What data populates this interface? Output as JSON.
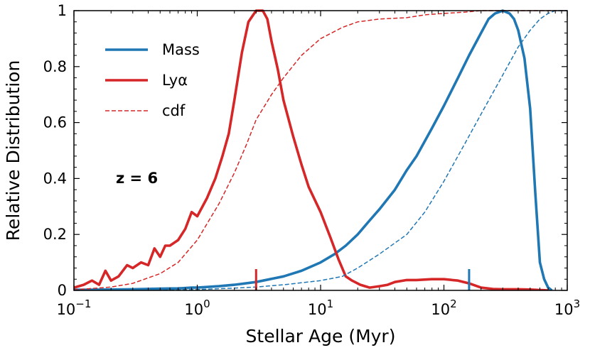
{
  "chart_data": {
    "type": "line",
    "xlabel": "Stellar Age (Myr)",
    "ylabel": "Relative Distribution",
    "xscale": "log",
    "xlim": [
      0.1,
      1000
    ],
    "ylim": [
      0,
      1
    ],
    "x_tick_labels": [
      {
        "value": 0.1,
        "base": "10",
        "exp": "−1"
      },
      {
        "value": 1,
        "base": "10",
        "exp": "0"
      },
      {
        "value": 10,
        "base": "10",
        "exp": "1"
      },
      {
        "value": 100,
        "base": "10",
        "exp": "2"
      },
      {
        "value": 1000,
        "base": "10",
        "exp": "3"
      }
    ],
    "y_ticks": [
      {
        "value": 0,
        "label": "0"
      },
      {
        "value": 0.2,
        "label": "0.2"
      },
      {
        "value": 0.4,
        "label": "0.4"
      },
      {
        "value": 0.6,
        "label": "0.6"
      },
      {
        "value": 0.8,
        "label": "0.8"
      },
      {
        "value": 1,
        "label": "1"
      }
    ],
    "annotation": "z = 6",
    "legend": {
      "position": "upper-left",
      "entries": [
        {
          "label": "Mass",
          "color": "#1f77b4",
          "style": "solid"
        },
        {
          "label": "Lyα",
          "color": "#d62728",
          "style": "solid"
        },
        {
          "label": "cdf",
          "color": "#d62728",
          "style": "dashed"
        }
      ]
    },
    "series": [
      {
        "name": "Mass",
        "color": "#1f77b4",
        "style": "solid",
        "points": [
          [
            0.1,
            0.002
          ],
          [
            0.2,
            0.003
          ],
          [
            0.3,
            0.004
          ],
          [
            0.5,
            0.006
          ],
          [
            0.7,
            0.007
          ],
          [
            0.9,
            0.01
          ],
          [
            1,
            0.01
          ],
          [
            1.5,
            0.015
          ],
          [
            2,
            0.02
          ],
          [
            3,
            0.03
          ],
          [
            5,
            0.05
          ],
          [
            7,
            0.07
          ],
          [
            10,
            0.1
          ],
          [
            13,
            0.13
          ],
          [
            16,
            0.16
          ],
          [
            20,
            0.2
          ],
          [
            25,
            0.25
          ],
          [
            30,
            0.29
          ],
          [
            40,
            0.36
          ],
          [
            50,
            0.43
          ],
          [
            60,
            0.48
          ],
          [
            80,
            0.58
          ],
          [
            100,
            0.66
          ],
          [
            130,
            0.76
          ],
          [
            160,
            0.84
          ],
          [
            200,
            0.92
          ],
          [
            230,
            0.97
          ],
          [
            260,
            0.99
          ],
          [
            300,
            1.0
          ],
          [
            340,
            0.99
          ],
          [
            370,
            0.97
          ],
          [
            400,
            0.93
          ],
          [
            450,
            0.83
          ],
          [
            500,
            0.65
          ],
          [
            550,
            0.35
          ],
          [
            600,
            0.1
          ],
          [
            650,
            0.04
          ],
          [
            700,
            0.01
          ],
          [
            750,
            0.0
          ]
        ]
      },
      {
        "name": "Lyα",
        "color": "#d62728",
        "style": "solid",
        "points": [
          [
            0.1,
            0.01
          ],
          [
            0.12,
            0.02
          ],
          [
            0.14,
            0.035
          ],
          [
            0.16,
            0.02
          ],
          [
            0.18,
            0.07
          ],
          [
            0.2,
            0.035
          ],
          [
            0.23,
            0.05
          ],
          [
            0.27,
            0.09
          ],
          [
            0.3,
            0.08
          ],
          [
            0.35,
            0.1
          ],
          [
            0.4,
            0.09
          ],
          [
            0.45,
            0.15
          ],
          [
            0.5,
            0.12
          ],
          [
            0.55,
            0.16
          ],
          [
            0.6,
            0.16
          ],
          [
            0.7,
            0.18
          ],
          [
            0.8,
            0.22
          ],
          [
            0.9,
            0.28
          ],
          [
            1.0,
            0.265
          ],
          [
            1.2,
            0.33
          ],
          [
            1.4,
            0.4
          ],
          [
            1.6,
            0.48
          ],
          [
            1.8,
            0.56
          ],
          [
            2.0,
            0.68
          ],
          [
            2.3,
            0.85
          ],
          [
            2.6,
            0.96
          ],
          [
            3.0,
            1.0
          ],
          [
            3.4,
            1.0
          ],
          [
            3.7,
            0.97
          ],
          [
            4.0,
            0.89
          ],
          [
            4.5,
            0.79
          ],
          [
            5.0,
            0.68
          ],
          [
            6.0,
            0.55
          ],
          [
            7.0,
            0.45
          ],
          [
            8.0,
            0.37
          ],
          [
            10,
            0.28
          ],
          [
            12,
            0.19
          ],
          [
            14,
            0.11
          ],
          [
            16,
            0.05
          ],
          [
            18,
            0.035
          ],
          [
            21,
            0.02
          ],
          [
            25,
            0.01
          ],
          [
            30,
            0.015
          ],
          [
            35,
            0.02
          ],
          [
            40,
            0.03
          ],
          [
            50,
            0.037
          ],
          [
            60,
            0.037
          ],
          [
            80,
            0.04
          ],
          [
            100,
            0.04
          ],
          [
            130,
            0.035
          ],
          [
            160,
            0.025
          ],
          [
            200,
            0.01
          ],
          [
            250,
            0.005
          ],
          [
            300,
            0.004
          ],
          [
            400,
            0.004
          ],
          [
            500,
            0.003
          ],
          [
            700,
            0.0
          ]
        ]
      },
      {
        "name": "cdf (Lyα)",
        "color": "#d62728",
        "style": "dashed",
        "points": [
          [
            0.1,
            0.002
          ],
          [
            0.2,
            0.012
          ],
          [
            0.3,
            0.025
          ],
          [
            0.5,
            0.06
          ],
          [
            0.7,
            0.1
          ],
          [
            1,
            0.18
          ],
          [
            1.5,
            0.31
          ],
          [
            2,
            0.42
          ],
          [
            2.5,
            0.52
          ],
          [
            3,
            0.61
          ],
          [
            4,
            0.7
          ],
          [
            5,
            0.76
          ],
          [
            7,
            0.84
          ],
          [
            10,
            0.9
          ],
          [
            15,
            0.94
          ],
          [
            20,
            0.96
          ],
          [
            30,
            0.97
          ],
          [
            50,
            0.975
          ],
          [
            70,
            0.985
          ],
          [
            100,
            0.99
          ],
          [
            150,
            0.995
          ],
          [
            200,
            1.0
          ],
          [
            1000,
            1.0
          ]
        ]
      },
      {
        "name": "cdf (Mass)",
        "color": "#1f77b4",
        "style": "dashed",
        "points": [
          [
            0.1,
            0.0
          ],
          [
            0.5,
            0.001
          ],
          [
            1,
            0.003
          ],
          [
            2,
            0.008
          ],
          [
            3,
            0.012
          ],
          [
            5,
            0.02
          ],
          [
            10,
            0.035
          ],
          [
            15,
            0.05
          ],
          [
            20,
            0.08
          ],
          [
            30,
            0.13
          ],
          [
            50,
            0.2
          ],
          [
            70,
            0.28
          ],
          [
            100,
            0.39
          ],
          [
            150,
            0.53
          ],
          [
            200,
            0.63
          ],
          [
            300,
            0.77
          ],
          [
            400,
            0.87
          ],
          [
            500,
            0.93
          ],
          [
            600,
            0.97
          ],
          [
            700,
            0.99
          ],
          [
            800,
            1.0
          ],
          [
            1000,
            1.0
          ]
        ]
      }
    ],
    "markers": [
      {
        "x": 3,
        "color": "#d62728"
      },
      {
        "x": 160,
        "color": "#1f77b4"
      }
    ]
  }
}
